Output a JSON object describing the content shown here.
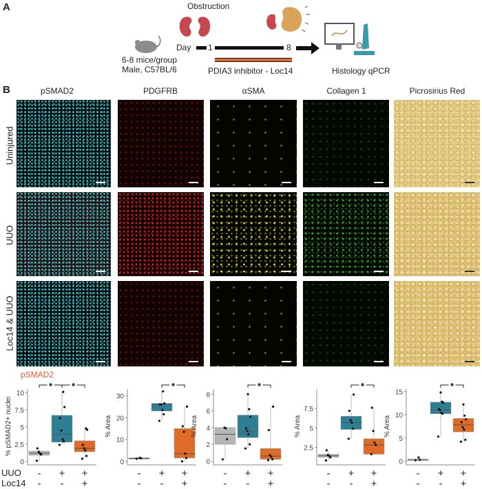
{
  "panel_a": {
    "label": "A",
    "obstruction": "Obstruction",
    "mice_line1": "6-8 mice/group",
    "mice_line2": "Male, C57BL/6",
    "day": "Day",
    "day1": "1",
    "day8": "8",
    "inhibitor": "PDIA3 inhibitor - Loc14",
    "readout": "Histology qPCR",
    "colors": {
      "timeline": "#111111",
      "inhibitor_bar": "#e06b28"
    }
  },
  "panel_b": {
    "label": "B",
    "columns": [
      "pSMAD2",
      "PDGFRB",
      "αSMA",
      "Collagen 1",
      "Picrosirius Red"
    ],
    "rows": [
      "Uninjured",
      "UUO",
      "Loc14 & UUO"
    ],
    "pSMAD2_tag": "pSMAD2",
    "treat_labels": [
      "UUO",
      "Loc14"
    ]
  },
  "chart_data": [
    {
      "type": "box",
      "title": "pSMAD2",
      "ylabel": "% pSMAD2+ nuclei",
      "ylim": [
        -0.3,
        10.5
      ],
      "yticks": [
        0,
        2.5,
        5,
        7.5,
        10
      ],
      "ytick_labels": [
        "0",
        "2.5",
        "5",
        "7.5",
        "10"
      ],
      "sig": [
        [
          0,
          1
        ],
        [
          1,
          2
        ]
      ],
      "sig_label": "*",
      "groups": [
        {
          "uuo": "-",
          "loc14": "-",
          "color": "#b5b5b5",
          "q1": 0.9,
          "median": 1.2,
          "q3": 1.5,
          "wlo": 0.1,
          "whi": 1.9,
          "points": [
            0.1,
            1.0,
            1.2,
            1.4,
            1.9
          ]
        },
        {
          "uuo": "+",
          "loc14": "-",
          "color": "#2e7e94",
          "q1": 2.8,
          "median": 3.9,
          "q3": 6.7,
          "wlo": 2.4,
          "whi": 10.1,
          "points": [
            2.4,
            2.9,
            3.2,
            4.5,
            6.3,
            7.9,
            10.1
          ]
        },
        {
          "uuo": "+",
          "loc14": "+",
          "color": "#e06b28",
          "q1": 1.4,
          "median": 1.9,
          "q3": 3.0,
          "wlo": 0.4,
          "whi": 4.8,
          "points": [
            0.4,
            0.8,
            1.6,
            1.9,
            2.4,
            4.6,
            4.8
          ]
        }
      ]
    },
    {
      "type": "box",
      "title": "PDGFRB",
      "ylabel": "% Area",
      "ylim": [
        -1,
        33
      ],
      "yticks": [
        0,
        10,
        20,
        30
      ],
      "ytick_labels": [
        "0",
        "10",
        "20",
        "30"
      ],
      "sig": [
        [
          1,
          2
        ]
      ],
      "sig_label": "*",
      "groups": [
        {
          "uuo": "-",
          "loc14": "-",
          "color": "#b5b5b5",
          "q1": 1.2,
          "median": 1.4,
          "q3": 1.6,
          "wlo": 1.2,
          "whi": 1.6,
          "points": [
            1.2,
            1.4,
            1.6
          ]
        },
        {
          "uuo": "+",
          "loc14": "-",
          "color": "#2e7e94",
          "q1": 23,
          "median": 26,
          "q3": 26.5,
          "wlo": 18.5,
          "whi": 32,
          "points": [
            18.5,
            21.5,
            23.5,
            26,
            26,
            26.5,
            32
          ]
        },
        {
          "uuo": "+",
          "loc14": "+",
          "color": "#e06b28",
          "q1": 1.5,
          "median": 3.5,
          "q3": 15,
          "wlo": 0,
          "whi": 25,
          "points": [
            0,
            1.5,
            3.5,
            13.5,
            16,
            25
          ]
        }
      ]
    },
    {
      "type": "box",
      "title": "αSMA",
      "ylabel": "% Area",
      "ylim": [
        -0.3,
        8.6
      ],
      "yticks": [
        0,
        2,
        4,
        6,
        8
      ],
      "ytick_labels": [
        "0",
        "2",
        "4",
        "6",
        "8"
      ],
      "sig": [
        [
          1,
          2
        ]
      ],
      "sig_label": "*",
      "groups": [
        {
          "uuo": "-",
          "loc14": "-",
          "color": "#b5b5b5",
          "q1": 2.0,
          "median": 3.2,
          "q3": 4.0,
          "wlo": 0.2,
          "whi": 4.0,
          "points": [
            0.2,
            2.6,
            3.9,
            4.0
          ]
        },
        {
          "uuo": "+",
          "loc14": "-",
          "color": "#2e7e94",
          "q1": 2.8,
          "median": 3.5,
          "q3": 5.5,
          "wlo": 1.5,
          "whi": 8.0,
          "points": [
            1.5,
            2.0,
            3.2,
            3.6,
            3.9,
            5.3,
            6.2,
            8.0
          ]
        },
        {
          "uuo": "+",
          "loc14": "+",
          "color": "#e06b28",
          "q1": 0.2,
          "median": 0.6,
          "q3": 1.5,
          "wlo": 0.1,
          "whi": 6.5,
          "points": [
            0.1,
            0.2,
            0.5,
            0.7,
            3.7,
            6.5
          ]
        }
      ]
    },
    {
      "type": "box",
      "title": "Collagen 1",
      "ylabel": "% Area",
      "ylim": [
        0.4,
        10
      ],
      "yticks": [
        2.5,
        5,
        7.5
      ],
      "ytick_labels": [
        "2.5",
        "5",
        "7.5"
      ],
      "sig": [
        [
          1,
          2
        ]
      ],
      "sig_label": "*",
      "groups": [
        {
          "uuo": "-",
          "loc14": "-",
          "color": "#b5b5b5",
          "q1": 1.2,
          "median": 1.4,
          "q3": 1.6,
          "wlo": 0.8,
          "whi": 2.1,
          "points": [
            0.8,
            1.2,
            1.4,
            1.5,
            2.1
          ]
        },
        {
          "uuo": "+",
          "loc14": "-",
          "color": "#2e7e94",
          "q1": 4.8,
          "median": 5.7,
          "q3": 6.5,
          "wlo": 3.6,
          "whi": 9.3,
          "points": [
            3.6,
            4.9,
            5.7,
            6.0,
            7.2,
            9.3
          ]
        },
        {
          "uuo": "+",
          "loc14": "+",
          "color": "#e06b28",
          "q1": 1.6,
          "median": 2.8,
          "q3": 3.6,
          "wlo": 1.6,
          "whi": 7.6,
          "points": [
            1.6,
            2.8,
            3.1,
            4.6,
            7.6
          ]
        }
      ]
    },
    {
      "type": "box",
      "title": "Picrosirius Red",
      "ylabel": "% Area",
      "ylim": [
        -0.5,
        15.5
      ],
      "yticks": [
        0,
        5,
        10,
        15
      ],
      "ytick_labels": [
        "0",
        "5",
        "10",
        "15"
      ],
      "sig": [
        [
          1,
          2
        ]
      ],
      "sig_label": "*",
      "groups": [
        {
          "uuo": "-",
          "loc14": "-",
          "color": "#b5b5b5",
          "q1": 0.3,
          "median": 0.35,
          "q3": 0.4,
          "wlo": 0.2,
          "whi": 0.8,
          "points": [
            0.2,
            0.3,
            0.8
          ]
        },
        {
          "uuo": "+",
          "loc14": "-",
          "color": "#2e7e94",
          "q1": 10.2,
          "median": 11,
          "q3": 12.7,
          "wlo": 5.3,
          "whi": 14.8,
          "points": [
            5.3,
            10.2,
            10.4,
            11,
            11.2,
            12.6,
            12.8,
            14.8
          ]
        },
        {
          "uuo": "+",
          "loc14": "+",
          "color": "#e06b28",
          "q1": 6.3,
          "median": 7.8,
          "q3": 9.2,
          "wlo": 4.2,
          "whi": 12.2,
          "points": [
            4.2,
            4.6,
            6.8,
            7.3,
            8.4,
            9.0,
            9.8,
            12.2
          ]
        }
      ]
    }
  ]
}
